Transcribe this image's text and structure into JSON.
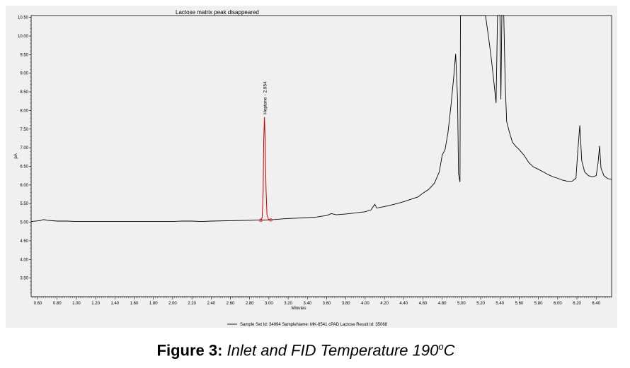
{
  "caption": {
    "label": "Figure 3:",
    "text_before_sup": "Inlet and FID Temperature 190",
    "superscript": "o",
    "text_after_sup": "C"
  },
  "chart_data": {
    "type": "line",
    "title": "Lactose matrix peak  disappeared",
    "xlabel": "Minutes",
    "ylabel": "pA",
    "xlim": [
      0.53,
      6.56
    ],
    "ylim": [
      3.0,
      10.55
    ],
    "x_ticks": [
      "0.60",
      "0.80",
      "1.00",
      "1.20",
      "1.40",
      "1.60",
      "1.80",
      "2.00",
      "2.20",
      "2.40",
      "2.60",
      "2.80",
      "3.00",
      "3.20",
      "3.40",
      "3.60",
      "3.80",
      "4.00",
      "4.20",
      "4.40",
      "4.60",
      "4.80",
      "5.00",
      "5.20",
      "5.40",
      "5.60",
      "5.80",
      "6.00",
      "6.20",
      "6.40"
    ],
    "y_ticks": [
      "3.50",
      "4.00",
      "4.50",
      "5.00",
      "5.50",
      "6.00",
      "6.50",
      "7.00",
      "7.50",
      "8.00",
      "8.50",
      "9.00",
      "9.50",
      "10.00",
      "10.50"
    ],
    "grid": false,
    "legend": "bottom-center",
    "series": [
      {
        "name": "Sample Set Id: 34994 SampleName: MK-8541 cPAD Lactose Result Id: 35068",
        "color": "#000000",
        "points": [
          [
            0.53,
            5.02
          ],
          [
            0.62,
            5.04
          ],
          [
            0.66,
            5.07
          ],
          [
            0.7,
            5.05
          ],
          [
            0.8,
            5.03
          ],
          [
            0.9,
            5.03
          ],
          [
            1.0,
            5.02
          ],
          [
            1.2,
            5.02
          ],
          [
            1.4,
            5.02
          ],
          [
            1.6,
            5.02
          ],
          [
            1.8,
            5.02
          ],
          [
            2.0,
            5.02
          ],
          [
            2.1,
            5.03
          ],
          [
            2.2,
            5.03
          ],
          [
            2.3,
            5.02
          ],
          [
            2.4,
            5.03
          ],
          [
            2.6,
            5.04
          ],
          [
            2.8,
            5.05
          ],
          [
            2.91,
            5.06
          ],
          [
            3.0,
            5.06
          ],
          [
            3.1,
            5.08
          ],
          [
            3.2,
            5.1
          ],
          [
            3.3,
            5.11
          ],
          [
            3.4,
            5.12
          ],
          [
            3.5,
            5.14
          ],
          [
            3.6,
            5.18
          ],
          [
            3.65,
            5.23
          ],
          [
            3.7,
            5.2
          ],
          [
            3.8,
            5.22
          ],
          [
            3.9,
            5.25
          ],
          [
            4.0,
            5.28
          ],
          [
            4.06,
            5.33
          ],
          [
            4.1,
            5.48
          ],
          [
            4.12,
            5.38
          ],
          [
            4.2,
            5.42
          ],
          [
            4.3,
            5.48
          ],
          [
            4.4,
            5.55
          ],
          [
            4.48,
            5.62
          ],
          [
            4.55,
            5.68
          ],
          [
            4.6,
            5.78
          ],
          [
            4.66,
            5.88
          ],
          [
            4.72,
            6.05
          ],
          [
            4.77,
            6.35
          ],
          [
            4.8,
            6.8
          ],
          [
            4.83,
            6.95
          ],
          [
            4.86,
            7.4
          ],
          [
            4.89,
            8.1
          ],
          [
            4.92,
            8.9
          ],
          [
            4.94,
            9.52
          ],
          [
            4.96,
            8.3
          ],
          [
            4.97,
            6.3
          ],
          [
            4.985,
            6.08
          ],
          [
            4.99,
            10.55
          ],
          [
            5.25,
            10.55
          ],
          [
            5.28,
            10.0
          ],
          [
            5.31,
            9.4
          ],
          [
            5.34,
            8.7
          ],
          [
            5.36,
            8.2
          ],
          [
            5.375,
            10.55
          ],
          [
            5.4,
            10.55
          ],
          [
            5.41,
            8.3
          ],
          [
            5.42,
            10.55
          ],
          [
            5.44,
            10.55
          ],
          [
            5.455,
            8.7
          ],
          [
            5.47,
            7.7
          ],
          [
            5.5,
            7.4
          ],
          [
            5.53,
            7.15
          ],
          [
            5.56,
            7.05
          ],
          [
            5.6,
            6.95
          ],
          [
            5.65,
            6.8
          ],
          [
            5.7,
            6.6
          ],
          [
            5.75,
            6.48
          ],
          [
            5.8,
            6.42
          ],
          [
            5.85,
            6.35
          ],
          [
            5.9,
            6.28
          ],
          [
            5.95,
            6.22
          ],
          [
            6.0,
            6.18
          ],
          [
            6.05,
            6.13
          ],
          [
            6.1,
            6.1
          ],
          [
            6.15,
            6.1
          ],
          [
            6.19,
            6.18
          ],
          [
            6.21,
            6.95
          ],
          [
            6.23,
            7.6
          ],
          [
            6.25,
            6.65
          ],
          [
            6.28,
            6.35
          ],
          [
            6.32,
            6.25
          ],
          [
            6.36,
            6.22
          ],
          [
            6.4,
            6.25
          ],
          [
            6.42,
            6.6
          ],
          [
            6.435,
            7.05
          ],
          [
            6.45,
            6.45
          ],
          [
            6.48,
            6.25
          ],
          [
            6.52,
            6.17
          ],
          [
            6.56,
            6.15
          ]
        ]
      }
    ],
    "integrated_peak": {
      "label": "Heptane - 2.954",
      "apex_x": 2.954,
      "apex_y": 7.82,
      "color": "#cc0000",
      "baseline_start": [
        2.915,
        5.05
      ],
      "baseline_end": [
        3.02,
        5.06
      ],
      "points": [
        [
          2.915,
          5.05
        ],
        [
          2.93,
          5.12
        ],
        [
          2.94,
          5.8
        ],
        [
          2.946,
          7.2
        ],
        [
          2.954,
          7.82
        ],
        [
          2.962,
          7.1
        ],
        [
          2.97,
          5.9
        ],
        [
          2.98,
          5.2
        ],
        [
          2.995,
          5.08
        ],
        [
          3.02,
          5.06
        ]
      ]
    }
  }
}
